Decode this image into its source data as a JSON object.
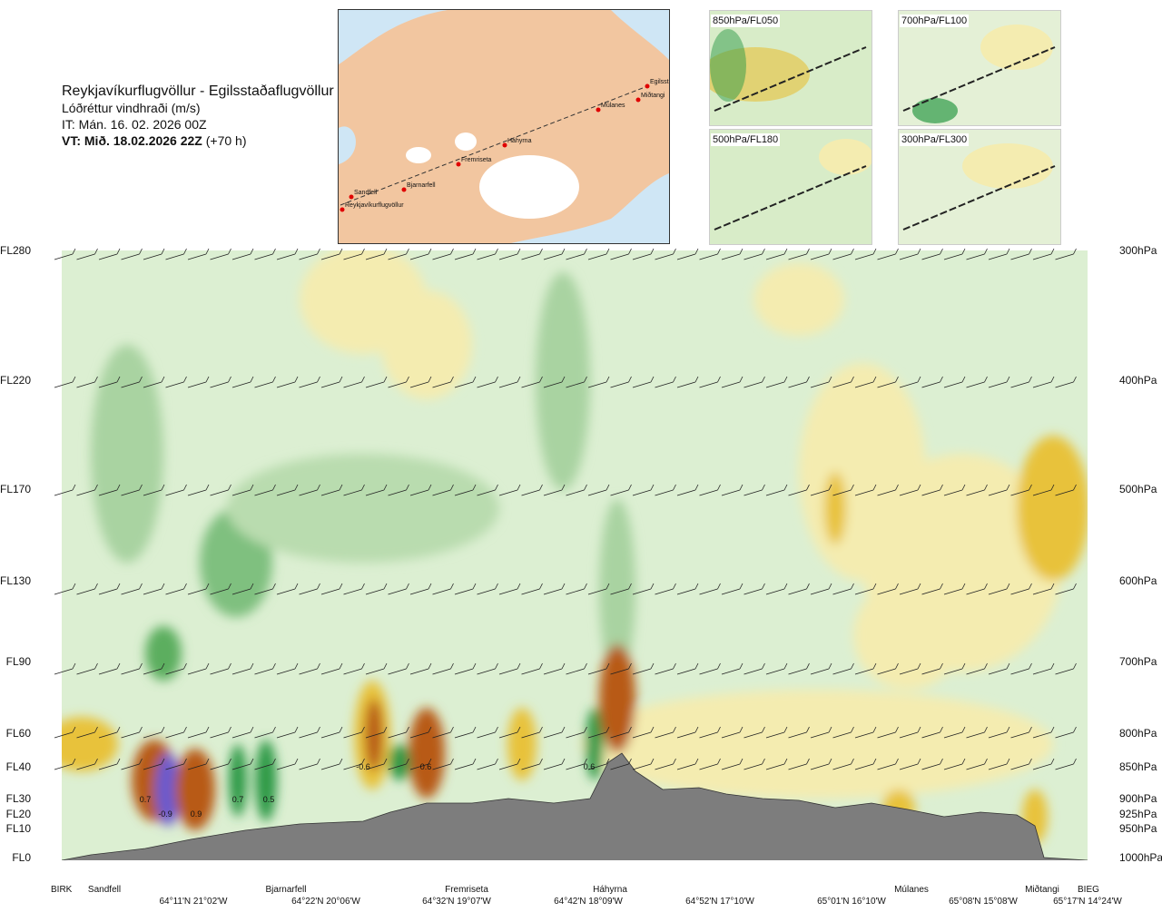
{
  "header": {
    "route": "Reykjavíkurflugvöllur - Egilsstaðaflugvöllur",
    "variable": "Lóðréttur vindhraði (m/s)",
    "init_time": "IT: Mán. 16. 02. 2026 00Z",
    "valid_prefix": "VT: Mið. 18.02.2026 22Z",
    "valid_lead": "(+70 h)"
  },
  "map": {
    "waypoints": [
      "Reykjavíkurflugvöllur",
      "Sandfell",
      "Bjarnarfell",
      "Fremriseta",
      "Háhyrna",
      "Múlanes",
      "Miðtangi",
      "Egilsstaðir"
    ],
    "land_color": "#f2c6a0",
    "sea_color": "#cfe6f5",
    "route_color": "#e00000"
  },
  "mini_maps": [
    {
      "label": "850hPa/FL050"
    },
    {
      "label": "700hPa/FL100"
    },
    {
      "label": "500hPa/FL180"
    },
    {
      "label": "300hPa/FL300"
    }
  ],
  "levels_left": [
    "FL280",
    "FL220",
    "FL170",
    "FL130",
    "FL90",
    "FL60",
    "FL40",
    "FL30",
    "FL20",
    "FL10",
    "FL0"
  ],
  "levels_right": [
    "300hPa",
    "400hPa",
    "500hPa",
    "600hPa",
    "700hPa",
    "800hPa",
    "850hPa",
    "900hPa",
    "925hPa",
    "950hPa",
    "1000hPa"
  ],
  "x_labels": {
    "points": [
      "BIRK",
      "Sandfell",
      "Bjarnarfell",
      "Fremriseta",
      "Háhyrna",
      "Múlanes",
      "Miðtangi",
      "BIEG"
    ],
    "coords": [
      "64°11'N 21°02'W",
      "64°22'N 20°06'W",
      "64°32'N 19°07'W",
      "64°42'N 18°09'W",
      "64°52'N 17°10'W",
      "65°01'N 16°10'W",
      "65°08'N 15°08'W",
      "65°17'N 14°24'W"
    ]
  },
  "chart_data": {
    "type": "heatmap",
    "title": "Lóðréttur vindhraði (m/s)",
    "x_points": [
      "BIRK",
      "Sandfell",
      "Bjarnarfell",
      "Fremriseta",
      "Háhyrna",
      "Múlanes",
      "Miðtangi",
      "BIEG"
    ],
    "y_levels_hPa": [
      300,
      400,
      500,
      600,
      700,
      800,
      850,
      900,
      925,
      950,
      1000
    ],
    "y_levels_FL": [
      280,
      220,
      170,
      130,
      90,
      60,
      40,
      30,
      20,
      10,
      0
    ],
    "contour_labels": [
      "0.7",
      "-0.9",
      "0.9",
      "0.7",
      "0.5",
      "-0.6",
      "0.6",
      "0.6"
    ],
    "colors": {
      "strong_down": "#6a5acd",
      "down": "#2e9a47",
      "weak_down": "#cfe8c9",
      "zero": "#f6f8df",
      "weak_up": "#f4ecb0",
      "up": "#e8c23a",
      "strong_up": "#8b3d10",
      "terrain": "#7d7d7d"
    }
  }
}
